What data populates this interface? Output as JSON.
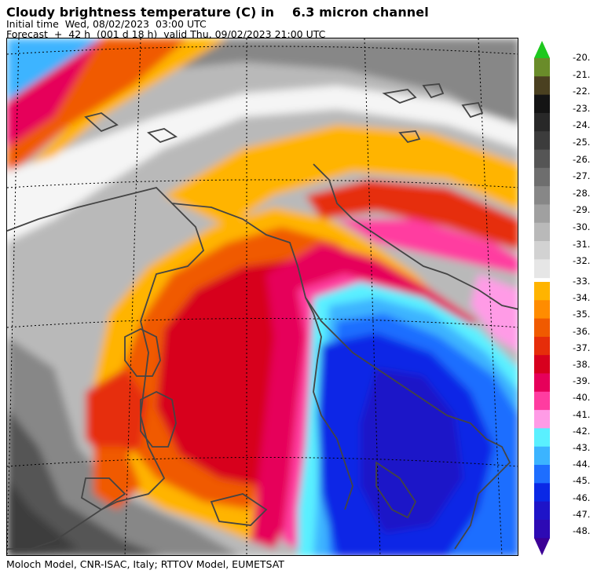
{
  "header": {
    "title": "Cloudy brightness temperature (C) in    6.3 micron channel",
    "initial_time": "Initial time  Wed, 08/02/2023  03:00 UTC",
    "forecast": "Forecast  +  42 h  (001 d 18 h)  valid Thu, 09/02/2023 21:00 UTC"
  },
  "footer": {
    "credit": "Moloch Model, CNR-ISAC, Italy; RTTOV Model, EUMETSAT"
  },
  "legend": {
    "labels": [
      "-20.",
      "-21.",
      "-22.",
      "-23.",
      "-24.",
      "-25.",
      "-26.",
      "-27.",
      "-28.",
      "-29.",
      "-30.",
      "-31.",
      "-32.",
      "-33.",
      "-34.",
      "-35.",
      "-36.",
      "-37.",
      "-38.",
      "-39.",
      "-40.",
      "-41.",
      "-42.",
      "-43.",
      "-44.",
      "-45.",
      "-46.",
      "-47.",
      "-48."
    ],
    "colors_upper": [
      "#1ec81e",
      "#6a8c2a",
      "#4a4020",
      "#141414",
      "#282828",
      "#3c3c3c",
      "#555555",
      "#6e6e6e",
      "#878787",
      "#a0a0a0",
      "#b9b9b9",
      "#d2d2d2",
      "#e6e6e6"
    ],
    "colors_lower": [
      "#ffb400",
      "#ff8c00",
      "#f05a00",
      "#e62d0a",
      "#d7001e",
      "#e6005a",
      "#ff3ca0",
      "#ff9be6",
      "#5af0ff",
      "#3cb4ff",
      "#1e6eff",
      "#0a28e6",
      "#1e14c8",
      "#2d0ab4",
      "#3c0096"
    ]
  },
  "map": {
    "palette": {
      "dark_gray": "#3c3c3c",
      "mid_gray": "#878787",
      "light_gray": "#b9b9b9",
      "white": "#f5f5f5",
      "orange": "#ffb400",
      "dark_orange": "#f05a00",
      "red": "#d7001e",
      "magenta": "#e6005a",
      "pink": "#ff3ca0",
      "light_pink": "#ff9be6",
      "cyan": "#5af0ff",
      "sky_blue": "#3cb4ff",
      "blue": "#1e6eff",
      "deep_blue": "#0a28e6",
      "indigo": "#1e14c8"
    }
  }
}
